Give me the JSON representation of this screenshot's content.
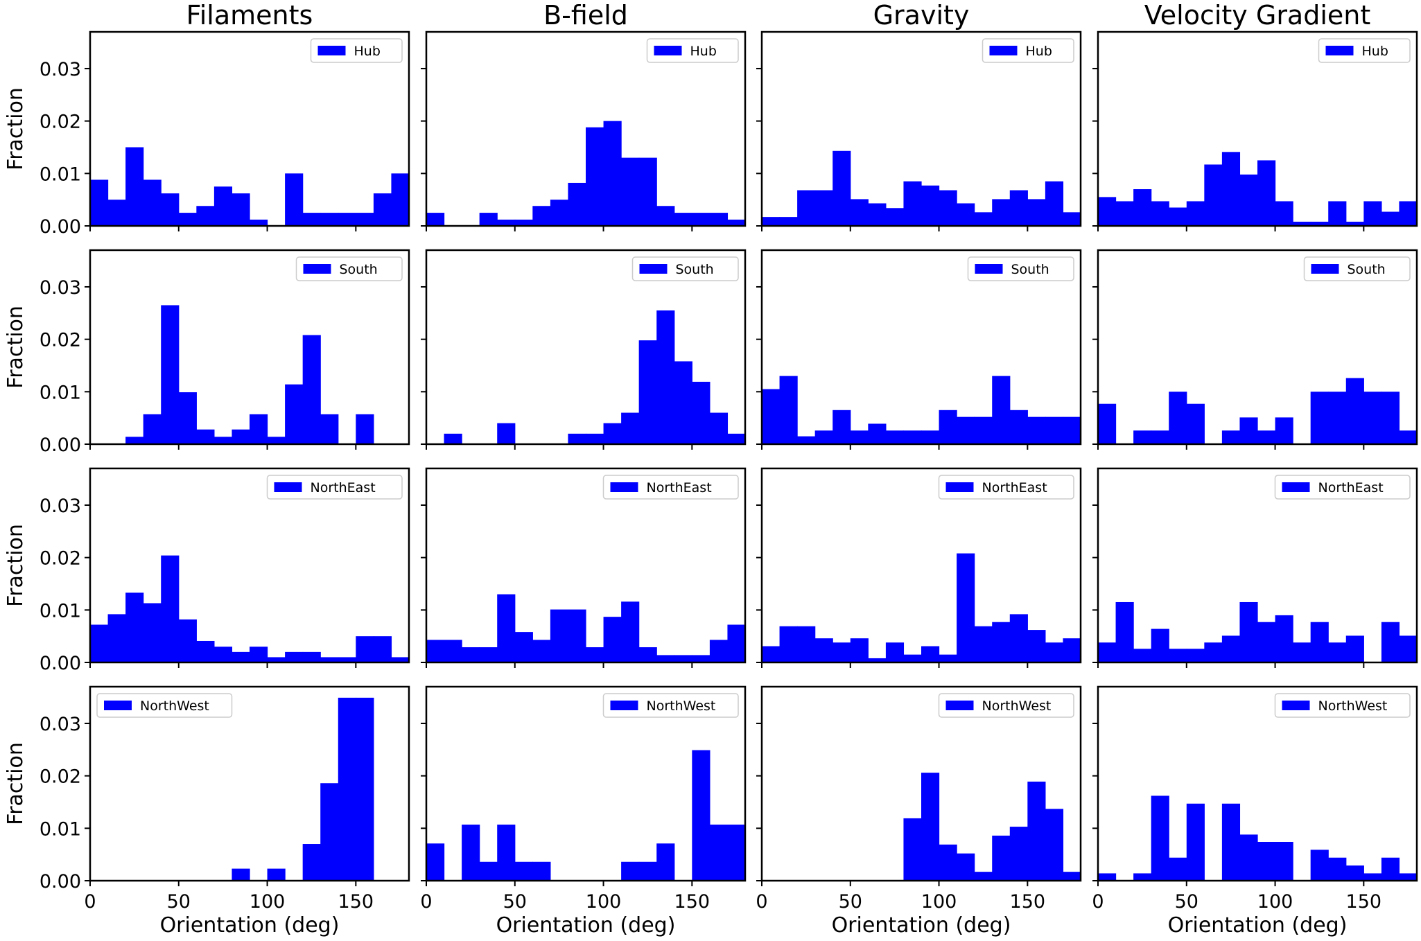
{
  "chart_data": {
    "type": "bar",
    "columns": [
      "Filaments",
      "B-field",
      "Gravity",
      "Velocity Gradient"
    ],
    "rows": [
      "Hub",
      "South",
      "NorthEast",
      "NorthWest"
    ],
    "xlabel": "Orientation (deg)",
    "ylabel": "Fraction",
    "xlim": [
      0,
      180
    ],
    "ylim": [
      0,
      0.037
    ],
    "xticks": [
      "0",
      "50",
      "100",
      "150"
    ],
    "yticks": [
      "0.00",
      "0.01",
      "0.02",
      "0.03"
    ],
    "bin_width": 10,
    "bin_edges": [
      0,
      10,
      20,
      30,
      40,
      50,
      60,
      70,
      80,
      90,
      100,
      110,
      120,
      130,
      140,
      150,
      160,
      170,
      180
    ],
    "bar_color": "#0000ff",
    "panels": [
      {
        "column": "Filaments",
        "series": "Hub",
        "legend_loc": "upper right",
        "values": [
          0.0088,
          0.005,
          0.015,
          0.0088,
          0.0062,
          0.0025,
          0.0038,
          0.0075,
          0.0062,
          0.0012,
          0.0,
          0.01,
          0.0025,
          0.0025,
          0.0025,
          0.0025,
          0.0062,
          0.01
        ]
      },
      {
        "column": "B-field",
        "series": "Hub",
        "legend_loc": "upper right",
        "values": [
          0.0025,
          0.0,
          0.0,
          0.0025,
          0.0012,
          0.0012,
          0.0038,
          0.005,
          0.0082,
          0.0188,
          0.02,
          0.013,
          0.013,
          0.0038,
          0.0025,
          0.0025,
          0.0025,
          0.0012
        ]
      },
      {
        "column": "Gravity",
        "series": "Hub",
        "legend_loc": "upper right",
        "values": [
          0.0017,
          0.0017,
          0.0068,
          0.0068,
          0.0143,
          0.0051,
          0.0043,
          0.0034,
          0.0085,
          0.0077,
          0.0068,
          0.0043,
          0.0026,
          0.0051,
          0.0068,
          0.0051,
          0.0085,
          0.0026
        ]
      },
      {
        "column": "Velocity Gradient",
        "series": "Hub",
        "legend_loc": "upper right",
        "values": [
          0.0055,
          0.0047,
          0.007,
          0.0047,
          0.0035,
          0.0047,
          0.0117,
          0.0141,
          0.0098,
          0.0125,
          0.0047,
          0.0008,
          0.0008,
          0.0047,
          0.0008,
          0.0047,
          0.0027,
          0.0047
        ]
      },
      {
        "column": "Filaments",
        "series": "South",
        "legend_loc": "upper right",
        "values": [
          0.0,
          0.0,
          0.0014,
          0.0057,
          0.0265,
          0.0099,
          0.0028,
          0.0014,
          0.0028,
          0.0057,
          0.0014,
          0.0114,
          0.0208,
          0.0057,
          0.0,
          0.0057,
          0.0,
          0.0
        ]
      },
      {
        "column": "B-field",
        "series": "South",
        "legend_loc": "upper right",
        "values": [
          0.0,
          0.002,
          0.0,
          0.0,
          0.004,
          0.0,
          0.0,
          0.0,
          0.002,
          0.002,
          0.004,
          0.006,
          0.0198,
          0.0255,
          0.0158,
          0.0119,
          0.006,
          0.002
        ]
      },
      {
        "column": "Gravity",
        "series": "South",
        "legend_loc": "upper right",
        "values": [
          0.0105,
          0.013,
          0.0015,
          0.0026,
          0.0065,
          0.0026,
          0.0039,
          0.0026,
          0.0026,
          0.0026,
          0.0065,
          0.0052,
          0.0052,
          0.013,
          0.0065,
          0.0052,
          0.0052,
          0.0052
        ]
      },
      {
        "column": "Velocity Gradient",
        "series": "South",
        "legend_loc": "upper right",
        "values": [
          0.0077,
          0.0,
          0.0026,
          0.0026,
          0.01,
          0.0077,
          0.0,
          0.0026,
          0.0051,
          0.0026,
          0.0051,
          0.0,
          0.01,
          0.01,
          0.0126,
          0.01,
          0.01,
          0.0026
        ]
      },
      {
        "column": "Filaments",
        "series": "NorthEast",
        "legend_loc": "upper right",
        "values": [
          0.0072,
          0.0092,
          0.0133,
          0.0113,
          0.0204,
          0.0082,
          0.0041,
          0.003,
          0.002,
          0.003,
          0.001,
          0.002,
          0.002,
          0.001,
          0.001,
          0.005,
          0.005,
          0.001
        ]
      },
      {
        "column": "B-field",
        "series": "NorthEast",
        "legend_loc": "upper right",
        "values": [
          0.0043,
          0.0043,
          0.0029,
          0.0029,
          0.013,
          0.0058,
          0.0043,
          0.0101,
          0.0101,
          0.0029,
          0.0087,
          0.0116,
          0.0029,
          0.0014,
          0.0014,
          0.0014,
          0.0043,
          0.0072
        ]
      },
      {
        "column": "Gravity",
        "series": "NorthEast",
        "legend_loc": "upper right",
        "values": [
          0.0031,
          0.0069,
          0.0069,
          0.0046,
          0.0038,
          0.0046,
          0.0008,
          0.0038,
          0.0015,
          0.0031,
          0.0015,
          0.0208,
          0.0069,
          0.0077,
          0.0092,
          0.0062,
          0.0038,
          0.0046
        ]
      },
      {
        "column": "Velocity Gradient",
        "series": "NorthEast",
        "legend_loc": "upper right",
        "values": [
          0.0038,
          0.0115,
          0.0026,
          0.0064,
          0.0026,
          0.0026,
          0.0038,
          0.0051,
          0.0115,
          0.0077,
          0.009,
          0.0038,
          0.0077,
          0.0038,
          0.0051,
          0.0,
          0.0077,
          0.0051
        ]
      },
      {
        "column": "Filaments",
        "series": "NorthWest",
        "legend_loc": "upper left",
        "values": [
          0.0,
          0.0,
          0.0,
          0.0,
          0.0,
          0.0,
          0.0,
          0.0,
          0.0023,
          0.0,
          0.0023,
          0.0,
          0.007,
          0.0186,
          0.0349,
          0.0349,
          0.0,
          0.0
        ]
      },
      {
        "column": "B-field",
        "series": "NorthWest",
        "legend_loc": "upper right",
        "values": [
          0.0071,
          0.0,
          0.0107,
          0.0036,
          0.0107,
          0.0036,
          0.0036,
          0.0,
          0.0,
          0.0,
          0.0,
          0.0036,
          0.0036,
          0.0071,
          0.0,
          0.0249,
          0.0107,
          0.0107
        ]
      },
      {
        "column": "Gravity",
        "series": "NorthWest",
        "legend_loc": "upper right",
        "values": [
          0.0,
          0.0,
          0.0,
          0.0,
          0.0,
          0.0,
          0.0,
          0.0,
          0.0119,
          0.0206,
          0.0069,
          0.0052,
          0.0017,
          0.0086,
          0.0103,
          0.0189,
          0.0137,
          0.0017
        ]
      },
      {
        "column": "Velocity Gradient",
        "series": "NorthWest",
        "legend_loc": "upper right",
        "values": [
          0.0014,
          0.0,
          0.0014,
          0.0162,
          0.0044,
          0.0147,
          0.0,
          0.0147,
          0.0088,
          0.0074,
          0.0074,
          0.0,
          0.0059,
          0.0044,
          0.0029,
          0.0014,
          0.0044,
          0.0014
        ]
      }
    ]
  }
}
